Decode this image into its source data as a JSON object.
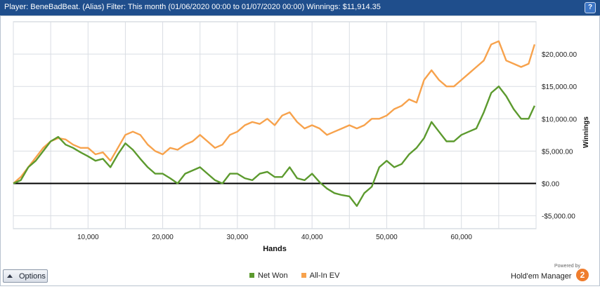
{
  "header": {
    "title": "Player: BeneBadBeat. (Alias) Filter: This month (01/06/2020 00:00 to 01/07/2020 00:00) Winnings: $11,914.35",
    "help_label": "?"
  },
  "options": {
    "label": "Options"
  },
  "legend": {
    "items": [
      "Net Won",
      "All-In EV"
    ]
  },
  "brand": {
    "powered": "Powered by",
    "name": "Hold'em Manager",
    "logo": "2"
  },
  "colors": {
    "net_won": "#5c9a2e",
    "all_in_ev": "#f7a24c",
    "zero_line": "#000000",
    "grid": "#d9dde3"
  },
  "chart_data": {
    "type": "line",
    "xlabel": "Hands",
    "ylabel": "Winnings",
    "xlim": [
      0,
      70000
    ],
    "ylim": [
      -7000,
      25000
    ],
    "xticks": [
      10000,
      20000,
      30000,
      40000,
      50000,
      60000
    ],
    "xtick_labels": [
      "10,000",
      "20,000",
      "30,000",
      "40,000",
      "50,000",
      "60,000"
    ],
    "yticks": [
      -5000,
      0,
      5000,
      10000,
      15000,
      20000
    ],
    "ytick_labels": [
      "-$5,000.00",
      "$0.00",
      "$5,000.00",
      "$10,000.00",
      "$15,000.00",
      "$20,000.00"
    ],
    "grid": true,
    "legend_position": "bottom-center",
    "series": [
      {
        "name": "Net Won",
        "x": [
          0,
          1000,
          2000,
          3000,
          4000,
          5000,
          6000,
          7000,
          8000,
          9000,
          10000,
          11000,
          12000,
          13000,
          14000,
          15000,
          16000,
          17000,
          18000,
          19000,
          20000,
          21000,
          22000,
          23000,
          24000,
          25000,
          26000,
          27000,
          28000,
          29000,
          30000,
          31000,
          32000,
          33000,
          34000,
          35000,
          36000,
          37000,
          38000,
          39000,
          40000,
          41000,
          42000,
          43000,
          44000,
          45000,
          46000,
          47000,
          48000,
          49000,
          50000,
          51000,
          52000,
          53000,
          54000,
          55000,
          56000,
          57000,
          58000,
          59000,
          60000,
          61000,
          62000,
          63000,
          64000,
          65000,
          66000,
          67000,
          68000,
          69000,
          69800
        ],
        "values": [
          0,
          500,
          2500,
          3500,
          5000,
          6500,
          7200,
          6000,
          5500,
          4800,
          4200,
          3500,
          3800,
          2500,
          4500,
          6200,
          5200,
          3800,
          2500,
          1500,
          1500,
          800,
          0,
          1500,
          2000,
          2500,
          1500,
          500,
          0,
          1500,
          1500,
          800,
          500,
          1500,
          1800,
          1000,
          1000,
          2500,
          800,
          500,
          1500,
          200,
          -800,
          -1500,
          -1800,
          -2000,
          -3500,
          -1500,
          -500,
          2500,
          3500,
          2500,
          3000,
          4500,
          5500,
          7000,
          9500,
          8000,
          6500,
          6500,
          7500,
          8000,
          8500,
          11000,
          14000,
          15000,
          13500,
          11500,
          10000,
          10000,
          12000
        ]
      },
      {
        "name": "All-In EV",
        "x": [
          0,
          1000,
          2000,
          3000,
          4000,
          5000,
          6000,
          7000,
          8000,
          9000,
          10000,
          11000,
          12000,
          13000,
          14000,
          15000,
          16000,
          17000,
          18000,
          19000,
          20000,
          21000,
          22000,
          23000,
          24000,
          25000,
          26000,
          27000,
          28000,
          29000,
          30000,
          31000,
          32000,
          33000,
          34000,
          35000,
          36000,
          37000,
          38000,
          39000,
          40000,
          41000,
          42000,
          43000,
          44000,
          45000,
          46000,
          47000,
          48000,
          49000,
          50000,
          51000,
          52000,
          53000,
          54000,
          55000,
          56000,
          57000,
          58000,
          59000,
          60000,
          61000,
          62000,
          63000,
          64000,
          65000,
          66000,
          67000,
          68000,
          69000,
          69800
        ],
        "values": [
          0,
          1000,
          2500,
          4000,
          5500,
          6500,
          7000,
          6800,
          6000,
          5500,
          5500,
          4500,
          4800,
          3500,
          5500,
          7500,
          8000,
          7500,
          6000,
          5000,
          4500,
          5500,
          5200,
          6000,
          6500,
          7500,
          6500,
          5500,
          6000,
          7500,
          8000,
          9000,
          9500,
          9200,
          10000,
          9000,
          10500,
          11000,
          9500,
          8500,
          9000,
          8500,
          7500,
          8000,
          8500,
          9000,
          8500,
          9000,
          10000,
          10000,
          10500,
          11500,
          12000,
          13000,
          12500,
          16000,
          17500,
          16000,
          15000,
          15000,
          16000,
          17000,
          18000,
          19000,
          21500,
          22000,
          19000,
          18500,
          18000,
          18500,
          21500
        ]
      }
    ]
  }
}
